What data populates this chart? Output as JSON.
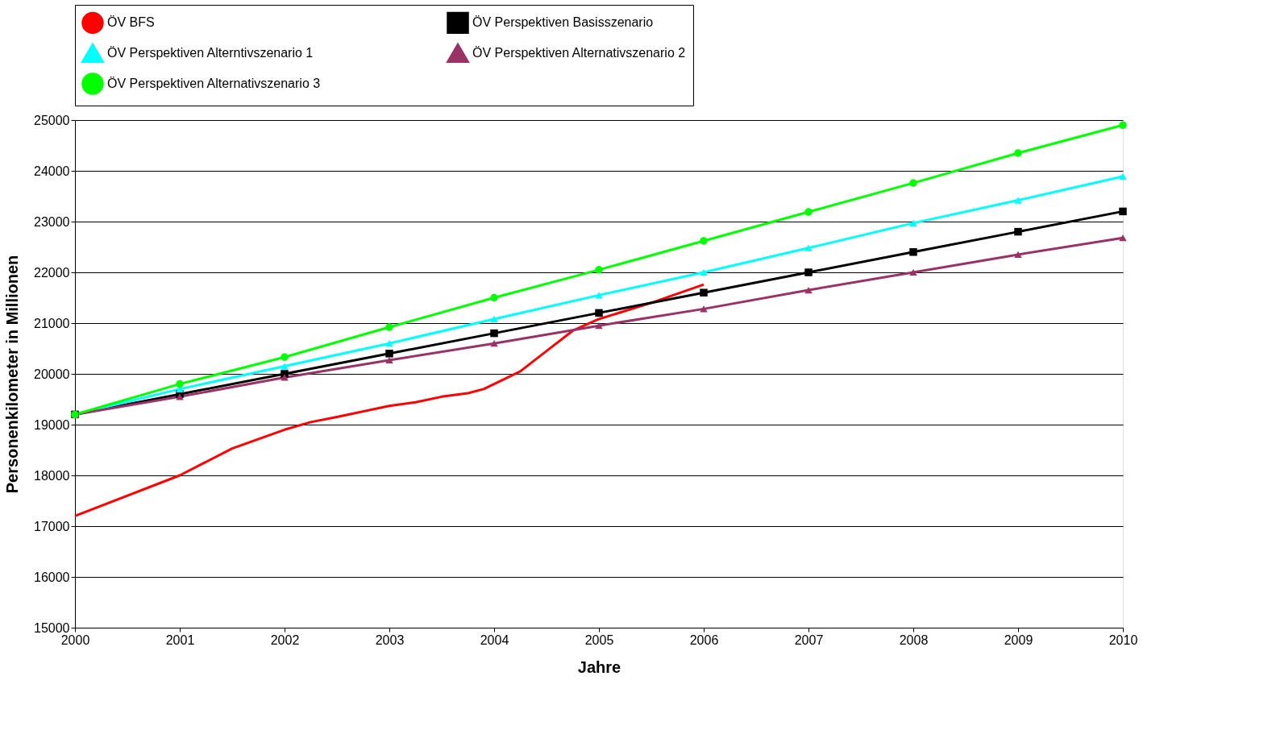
{
  "chart_data": {
    "type": "line",
    "xlabel": "Jahre",
    "ylabel": "Personenkilometer in Millionen",
    "xlim": [
      2000,
      2010
    ],
    "xticks": [
      2000,
      2001,
      2002,
      2003,
      2004,
      2005,
      2006,
      2007,
      2008,
      2009,
      2010
    ],
    "ylim": [
      15000,
      25000
    ],
    "yticks": [
      15000,
      16000,
      17000,
      18000,
      19000,
      20000,
      21000,
      22000,
      23000,
      24000,
      25000
    ],
    "grid": "y",
    "legend": "top",
    "line_style": "solid",
    "series": [
      {
        "name": "ÖV BFS",
        "color": "#ff0000",
        "marker": "none",
        "x": [
          2000,
          2001,
          2001.5,
          2002,
          2002.25,
          2002.5,
          2003,
          2003.25,
          2003.5,
          2003.75,
          2003.9,
          2004,
          2004.25,
          2004.5,
          2004.75,
          2005,
          2005.5,
          2006
        ],
        "values": [
          17200,
          18000,
          18530,
          18900,
          19050,
          19150,
          19370,
          19440,
          19550,
          19620,
          19700,
          19800,
          20050,
          20450,
          20850,
          21080,
          21400,
          21760
        ]
      },
      {
        "name": "ÖV Perspektiven Basisszenario",
        "color": "#000000",
        "marker": "square",
        "x": [
          2000,
          2001,
          2002,
          2003,
          2004,
          2005,
          2006,
          2007,
          2008,
          2009,
          2010
        ],
        "values": [
          19200,
          19600,
          20000,
          20400,
          20800,
          21200,
          21600,
          22000,
          22400,
          22800,
          23200
        ]
      },
      {
        "name": "ÖV Perspektiven Alterntivszenario 1",
        "color": "#00ffff",
        "marker": "triangle",
        "x": [
          2000,
          2001,
          2002,
          2003,
          2004,
          2005,
          2006,
          2007,
          2008,
          2009,
          2010
        ],
        "values": [
          19200,
          19700,
          20150,
          20600,
          21080,
          21550,
          22000,
          22480,
          22970,
          23420,
          23890
        ]
      },
      {
        "name": "ÖV Perspektiven Alternativszenario 2",
        "color": "#993366",
        "marker": "triangle",
        "x": [
          2000,
          2001,
          2002,
          2003,
          2004,
          2005,
          2006,
          2007,
          2008,
          2009,
          2010
        ],
        "values": [
          19200,
          19550,
          19930,
          20270,
          20600,
          20950,
          21280,
          21650,
          22000,
          22350,
          22680
        ]
      },
      {
        "name": "ÖV Perspektiven Alternativszenario 3",
        "color": "#00ff00",
        "marker": "circle",
        "x": [
          2000,
          2001,
          2002,
          2003,
          2004,
          2005,
          2006,
          2007,
          2008,
          2009,
          2010
        ],
        "values": [
          19200,
          19800,
          20330,
          20920,
          21500,
          22050,
          22620,
          23190,
          23760,
          24350,
          24900
        ]
      }
    ]
  }
}
